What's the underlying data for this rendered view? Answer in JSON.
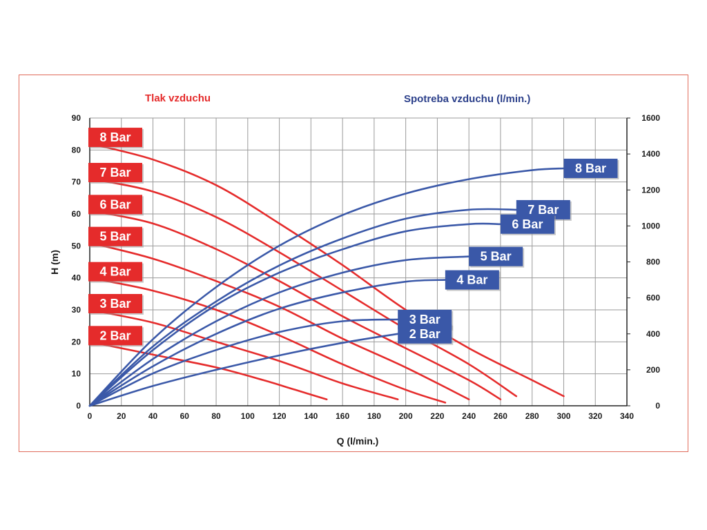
{
  "colors": {
    "pressure": "#e52b2b",
    "air": "#3a58a8",
    "grid": "#9a9a9a",
    "frame": "#e06a5a"
  },
  "chart_data": {
    "type": "line",
    "left_header": "Tlak vzduchu",
    "right_header": "Spotreba vzduchu (l/min.)",
    "xlabel": "Q (l/min.)",
    "ylabel": "H (m)",
    "xlim": [
      0,
      340
    ],
    "ylim": [
      0,
      90
    ],
    "y2lim": [
      0,
      1600
    ],
    "x_ticks": [
      0,
      20,
      40,
      60,
      80,
      100,
      120,
      140,
      160,
      180,
      200,
      220,
      240,
      260,
      280,
      300,
      320,
      340
    ],
    "y_ticks": [
      0,
      10,
      20,
      30,
      40,
      50,
      60,
      70,
      80,
      90
    ],
    "y2_ticks": [
      0,
      200,
      400,
      600,
      800,
      1000,
      1200,
      1400,
      1600
    ],
    "grid": true,
    "pressure_series": [
      {
        "name": "8 Bar",
        "points": [
          [
            0,
            82
          ],
          [
            40,
            77
          ],
          [
            80,
            69
          ],
          [
            120,
            57
          ],
          [
            160,
            44
          ],
          [
            200,
            30
          ],
          [
            240,
            18
          ],
          [
            280,
            8
          ],
          [
            300,
            3
          ]
        ]
      },
      {
        "name": "7 Bar",
        "points": [
          [
            0,
            71
          ],
          [
            40,
            67
          ],
          [
            80,
            59
          ],
          [
            120,
            48
          ],
          [
            160,
            36
          ],
          [
            200,
            24
          ],
          [
            240,
            13
          ],
          [
            270,
            3
          ]
        ]
      },
      {
        "name": "6 Bar",
        "points": [
          [
            0,
            61
          ],
          [
            40,
            57
          ],
          [
            80,
            49
          ],
          [
            120,
            39
          ],
          [
            160,
            28
          ],
          [
            200,
            18
          ],
          [
            240,
            8
          ],
          [
            260,
            2
          ]
        ]
      },
      {
        "name": "5 Bar",
        "points": [
          [
            0,
            51
          ],
          [
            40,
            46
          ],
          [
            80,
            39
          ],
          [
            120,
            31
          ],
          [
            160,
            21
          ],
          [
            200,
            12
          ],
          [
            240,
            2
          ]
        ]
      },
      {
        "name": "4 Bar",
        "points": [
          [
            0,
            40
          ],
          [
            40,
            36
          ],
          [
            80,
            30
          ],
          [
            120,
            22
          ],
          [
            160,
            13
          ],
          [
            200,
            5
          ],
          [
            225,
            1
          ]
        ]
      },
      {
        "name": "3 Bar",
        "points": [
          [
            0,
            30
          ],
          [
            40,
            26
          ],
          [
            80,
            20
          ],
          [
            120,
            14
          ],
          [
            160,
            7
          ],
          [
            195,
            2
          ]
        ]
      },
      {
        "name": "2 Bar",
        "points": [
          [
            0,
            20
          ],
          [
            40,
            16
          ],
          [
            80,
            12
          ],
          [
            110,
            8
          ],
          [
            130,
            5
          ],
          [
            150,
            2
          ]
        ]
      }
    ],
    "air_series": [
      {
        "name": "8 Bar",
        "points": [
          [
            0,
            0
          ],
          [
            40,
            370
          ],
          [
            80,
            660
          ],
          [
            120,
            890
          ],
          [
            160,
            1060
          ],
          [
            200,
            1180
          ],
          [
            240,
            1260
          ],
          [
            280,
            1310
          ],
          [
            300,
            1320
          ]
        ]
      },
      {
        "name": "7 Bar",
        "points": [
          [
            0,
            0
          ],
          [
            40,
            330
          ],
          [
            80,
            580
          ],
          [
            120,
            780
          ],
          [
            160,
            930
          ],
          [
            200,
            1040
          ],
          [
            240,
            1090
          ],
          [
            270,
            1090
          ]
        ]
      },
      {
        "name": "6 Bar",
        "points": [
          [
            0,
            0
          ],
          [
            40,
            310
          ],
          [
            80,
            560
          ],
          [
            120,
            740
          ],
          [
            160,
            870
          ],
          [
            200,
            970
          ],
          [
            240,
            1010
          ],
          [
            260,
            1010
          ]
        ]
      },
      {
        "name": "5 Bar",
        "points": [
          [
            0,
            0
          ],
          [
            40,
            260
          ],
          [
            80,
            470
          ],
          [
            120,
            630
          ],
          [
            160,
            740
          ],
          [
            200,
            810
          ],
          [
            240,
            830
          ]
        ]
      },
      {
        "name": "4 Bar",
        "points": [
          [
            0,
            0
          ],
          [
            40,
            220
          ],
          [
            80,
            400
          ],
          [
            120,
            540
          ],
          [
            160,
            630
          ],
          [
            200,
            690
          ],
          [
            225,
            700
          ]
        ]
      },
      {
        "name": "3 Bar",
        "points": [
          [
            0,
            0
          ],
          [
            40,
            180
          ],
          [
            80,
            310
          ],
          [
            120,
            410
          ],
          [
            160,
            470
          ],
          [
            195,
            480
          ]
        ]
      },
      {
        "name": "2 Bar",
        "points": [
          [
            0,
            0
          ],
          [
            40,
            110
          ],
          [
            80,
            200
          ],
          [
            120,
            280
          ],
          [
            160,
            350
          ],
          [
            195,
            400
          ]
        ]
      }
    ]
  }
}
